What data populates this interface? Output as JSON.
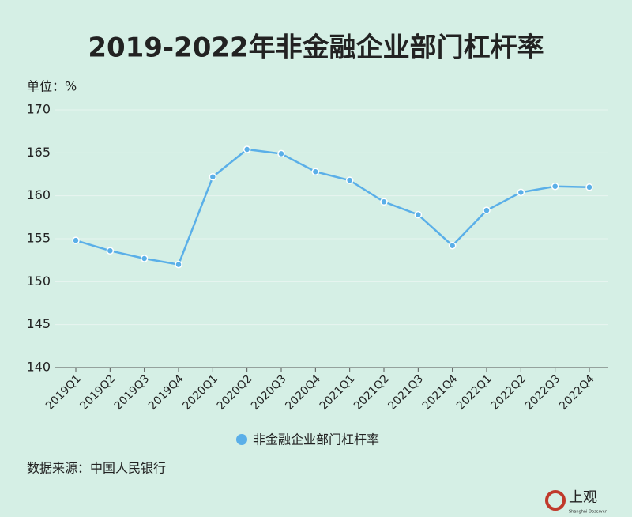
{
  "chart_data": {
    "type": "line",
    "title": "2019-2022年非金融企业部门杠杆率",
    "unit_label": "单位：%",
    "categories": [
      "2019Q1",
      "2019Q2",
      "2019Q3",
      "2019Q4",
      "2020Q1",
      "2020Q2",
      "2020Q3",
      "2020Q4",
      "2021Q1",
      "2021Q2",
      "2021Q3",
      "2021Q4",
      "2022Q1",
      "2022Q2",
      "2022Q3",
      "2022Q4"
    ],
    "series": [
      {
        "name": "非金融企业部门杠杆率",
        "color": "#5aafe8",
        "values": [
          154.8,
          153.6,
          152.7,
          152.0,
          162.2,
          165.4,
          164.9,
          162.8,
          161.8,
          159.3,
          157.8,
          154.2,
          158.3,
          160.4,
          161.1,
          161.0
        ]
      }
    ],
    "ylim": [
      140,
      170
    ],
    "yticks": [
      140,
      145,
      150,
      155,
      160,
      165,
      170
    ],
    "grid": true,
    "source": "数据来源：中国人民银行",
    "logo_text": "上观",
    "logo_subtext": "Shanghai Observer"
  }
}
